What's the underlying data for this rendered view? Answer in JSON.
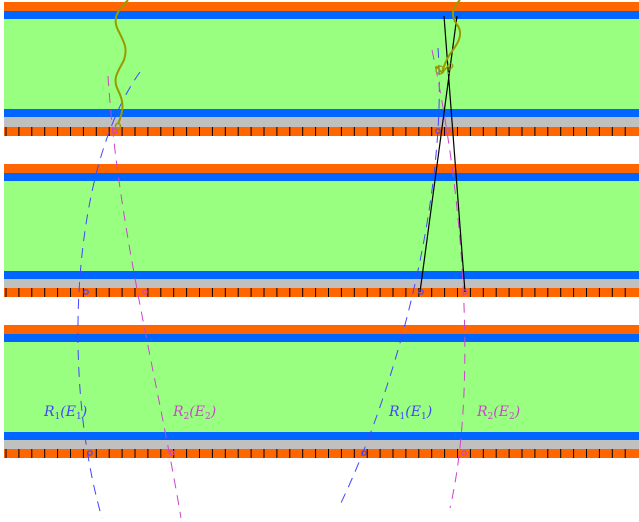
{
  "colors": {
    "background": "#ffffff",
    "top_stripe": "#ff6600",
    "blue_stripe": "#0066ff",
    "fill_layer": "#99ff80",
    "gray_layer": "#c0c0c0",
    "readout_orange": "#ff6600",
    "readout_tick": "#000000",
    "track1": "#4444ff",
    "track2": "#cc44cc",
    "particle": "#999900",
    "straight_track": "#000000"
  },
  "labels": {
    "r1_symbol": "R",
    "r1_sub": "1",
    "r1_open": "(",
    "r1_arg": "E",
    "r1_arg_sub": "1",
    "r1_close": ")",
    "r2_symbol": "R",
    "r2_sub": "2",
    "r2_open": "(",
    "r2_arg": "E",
    "r2_arg_sub": "2",
    "r2_close": ")",
    "question_mark": "?"
  },
  "detector": {
    "layers": [
      {
        "name": "layer-1"
      },
      {
        "name": "layer-2"
      },
      {
        "name": "layer-3"
      }
    ]
  }
}
